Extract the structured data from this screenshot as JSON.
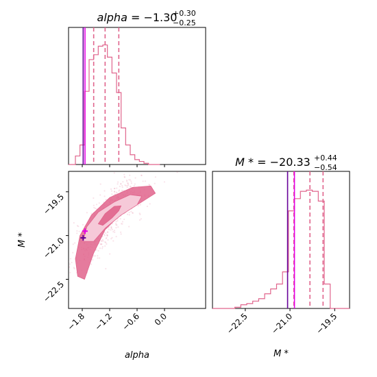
{
  "chart_data": [
    {
      "type": "histogram",
      "panel": "alpha-marginal",
      "title": {
        "param": "alpha",
        "value": "−1.30",
        "plus": "+0.30",
        "minus": "−0.25"
      },
      "xlim": [
        -2.1,
        0.9
      ],
      "bins": [
        [
          -2.1,
          -1.95,
          0.0
        ],
        [
          -1.95,
          -1.85,
          0.07
        ],
        [
          -1.85,
          -1.75,
          0.16
        ],
        [
          -1.75,
          -1.65,
          0.6
        ],
        [
          -1.65,
          -1.55,
          0.86
        ],
        [
          -1.55,
          -1.45,
          0.9
        ],
        [
          -1.45,
          -1.35,
          0.97
        ],
        [
          -1.35,
          -1.25,
          0.98
        ],
        [
          -1.25,
          -1.15,
          0.88
        ],
        [
          -1.15,
          -1.05,
          0.75
        ],
        [
          -1.05,
          -0.95,
          0.59
        ],
        [
          -0.95,
          -0.85,
          0.3
        ],
        [
          -0.85,
          -0.75,
          0.16
        ],
        [
          -0.75,
          -0.65,
          0.08
        ],
        [
          -0.65,
          -0.55,
          0.04
        ],
        [
          -0.55,
          -0.45,
          0.025
        ],
        [
          -0.45,
          -0.35,
          0.01
        ],
        [
          -0.35,
          -0.1,
          0.0
        ]
      ],
      "quantiles": [
        -1.55,
        -1.3,
        -1.0
      ],
      "truth_lines": [
        {
          "value": -1.78,
          "color": "#660099"
        },
        {
          "value": -1.74,
          "color": "#e600e6"
        }
      ],
      "color": "#e0648c"
    },
    {
      "type": "scatter-density",
      "panel": "alpha-vs-Mstar",
      "xlabel": "alpha",
      "ylabel": "M *",
      "xlim": [
        -2.1,
        0.9
      ],
      "ylim": [
        -23.5,
        -18.8
      ],
      "xticks": [
        "-1.8",
        "-1.2",
        "-0.6",
        "0.0"
      ],
      "xtick_values": [
        -1.8,
        -1.2,
        -0.6,
        0.0
      ],
      "yticks": [
        "-19.5",
        "-21.0",
        "-22.5"
      ],
      "ytick_values": [
        -19.5,
        -21.0,
        -22.5
      ],
      "truth_markers": [
        {
          "x": -1.78,
          "y": -21.08,
          "color": "#660099"
        },
        {
          "x": -1.74,
          "y": -20.85,
          "color": "#e600e6"
        }
      ],
      "contours": {
        "outer": [
          [
            -1.9,
            -22.4
          ],
          [
            -1.95,
            -21.8
          ],
          [
            -1.85,
            -21.0
          ],
          [
            -1.6,
            -20.3
          ],
          [
            -1.2,
            -19.7
          ],
          [
            -0.7,
            -19.35
          ],
          [
            -0.3,
            -19.3
          ],
          [
            -0.2,
            -19.55
          ],
          [
            -0.55,
            -19.9
          ],
          [
            -0.95,
            -20.25
          ],
          [
            -1.3,
            -20.8
          ],
          [
            -1.55,
            -21.6
          ],
          [
            -1.75,
            -22.5
          ]
        ],
        "middle": [
          [
            -1.78,
            -21.2
          ],
          [
            -1.7,
            -20.7
          ],
          [
            -1.45,
            -20.2
          ],
          [
            -1.1,
            -19.85
          ],
          [
            -0.75,
            -19.6
          ],
          [
            -0.5,
            -19.65
          ],
          [
            -0.6,
            -19.95
          ],
          [
            -0.95,
            -20.3
          ],
          [
            -1.3,
            -20.75
          ],
          [
            -1.55,
            -21.2
          ]
        ],
        "inner": [
          [
            -1.45,
            -20.6
          ],
          [
            -1.3,
            -20.25
          ],
          [
            -1.1,
            -20.0
          ],
          [
            -0.95,
            -19.98
          ],
          [
            -1.0,
            -20.15
          ],
          [
            -1.15,
            -20.4
          ],
          [
            -1.35,
            -20.65
          ]
        ]
      },
      "color": "#e0648c"
    },
    {
      "type": "histogram",
      "panel": "Mstar-marginal",
      "title": {
        "param": "M *",
        "value": "−20.33",
        "plus": "+0.44",
        "minus": "−0.54"
      },
      "xlabel": "M *",
      "xlim": [
        -23.6,
        -19.0
      ],
      "xticks": [
        "-22.5",
        "-21.0",
        "-19.5"
      ],
      "xtick_values": [
        -22.5,
        -21.0,
        -19.5
      ],
      "bins": [
        [
          -23.6,
          -22.85,
          0.0
        ],
        [
          -22.85,
          -22.65,
          0.01
        ],
        [
          -22.65,
          -22.45,
          0.03
        ],
        [
          -22.45,
          -22.25,
          0.04
        ],
        [
          -22.25,
          -22.05,
          0.06
        ],
        [
          -22.05,
          -21.85,
          0.08
        ],
        [
          -21.85,
          -21.65,
          0.12
        ],
        [
          -21.65,
          -21.45,
          0.16
        ],
        [
          -21.45,
          -21.25,
          0.2
        ],
        [
          -21.25,
          -21.05,
          0.3
        ],
        [
          -21.05,
          -20.85,
          0.8
        ],
        [
          -20.85,
          -20.65,
          0.9
        ],
        [
          -20.65,
          -20.45,
          0.96
        ],
        [
          -20.45,
          -20.25,
          0.97
        ],
        [
          -20.25,
          -20.05,
          0.96
        ],
        [
          -20.05,
          -19.85,
          0.88
        ],
        [
          -19.85,
          -19.65,
          0.2
        ],
        [
          -19.65,
          -19.45,
          0.0
        ],
        [
          -19.45,
          -19.0,
          0.0
        ]
      ],
      "quantiles": [
        -20.87,
        -20.33,
        -19.89
      ],
      "truth_lines": [
        {
          "value": -21.08,
          "color": "#660099"
        },
        {
          "value": -20.85,
          "color": "#e600e6"
        }
      ],
      "color": "#e0648c"
    }
  ]
}
